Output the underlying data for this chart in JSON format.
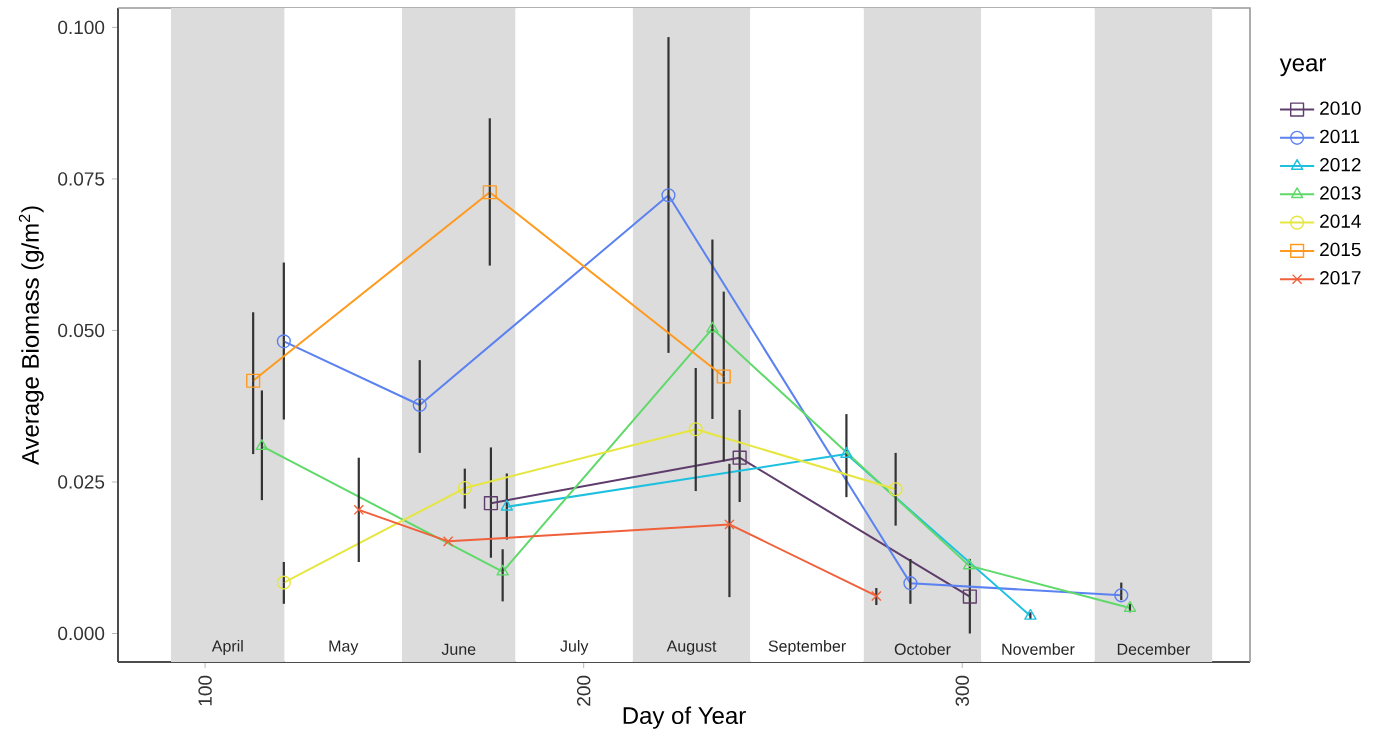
{
  "chart_data": {
    "type": "line",
    "xlabel": "Day of Year",
    "ylabel": "Average Biomass (g/m$^{2}$)",
    "legend_title": "year",
    "legend": "right",
    "grid": false,
    "xlim": [
      77,
      376
    ],
    "ylim": [
      -0.0047,
      0.1032
    ],
    "xticks": [
      100,
      200,
      300
    ],
    "yticks": [
      {
        "value": 0,
        "label": "0.000"
      },
      {
        "value": 0.025,
        "label": "0.025"
      },
      {
        "value": 0.05,
        "label": "0.050"
      },
      {
        "value": 0.075,
        "label": "0.075"
      },
      {
        "value": 0.1,
        "label": "0.100"
      }
    ],
    "bands": [
      {
        "axis": "x",
        "from": 91,
        "to": 121,
        "label": "April",
        "color": "#dcdcdc"
      },
      {
        "axis": "x",
        "from": 121,
        "to": 152,
        "label": "May",
        "color": "#ffffff"
      },
      {
        "axis": "x",
        "from": 152,
        "to": 182,
        "label": "June",
        "color": "#dcdcdc"
      },
      {
        "axis": "x",
        "from": 182,
        "to": 213,
        "label": "July",
        "color": "#ffffff"
      },
      {
        "axis": "x",
        "from": 213,
        "to": 244,
        "label": "August",
        "color": "#dcdcdc"
      },
      {
        "axis": "x",
        "from": 244,
        "to": 274,
        "label": "September",
        "color": "#ffffff"
      },
      {
        "axis": "x",
        "from": 274,
        "to": 305,
        "label": "October",
        "color": "#dcdcdc"
      },
      {
        "axis": "x",
        "from": 305,
        "to": 335,
        "label": "November",
        "color": "#ffffff"
      },
      {
        "axis": "x",
        "from": 335,
        "to": 366,
        "label": "December",
        "color": "#dcdcdc"
      }
    ],
    "series": [
      {
        "name": "2010",
        "color": "#5e3c6b",
        "marker": "square",
        "x": [
          175.5,
          241.2,
          302
        ],
        "values": [
          0.0215,
          0.029,
          0.0061
        ],
        "errors": [
          [
            0.0125,
            0.0307
          ],
          [
            0.0217,
            0.0369
          ],
          [
            0.0,
            0.0123
          ]
        ]
      },
      {
        "name": "2011",
        "color": "#5b82f0",
        "marker": "circle",
        "x": [
          120.8,
          156.7,
          222.4,
          286.3,
          342
        ],
        "values": [
          0.0482,
          0.0377,
          0.0723,
          0.0083,
          0.0063
        ],
        "errors": [
          [
            0.0353,
            0.0612
          ],
          [
            0.0298,
            0.0451
          ],
          [
            0.0463,
            0.0984
          ],
          [
            0.0049,
            0.0123
          ],
          [
            0.0055,
            0.0084
          ]
        ]
      },
      {
        "name": "2012",
        "color": "#1ec0e0",
        "marker": "triangle",
        "x": [
          179.7,
          269.4,
          318
        ],
        "values": [
          0.0209,
          0.0296,
          0.0029
        ],
        "errors": [
          [
            0.0155,
            0.0264
          ],
          [
            0.0225,
            0.0362
          ],
          [
            0.0024,
            0.0035
          ]
        ]
      },
      {
        "name": "2013",
        "color": "#5fd96a",
        "marker": "triangle",
        "x": [
          115,
          178.6,
          234,
          301.8,
          344.3
        ],
        "values": [
          0.0309,
          0.0102,
          0.0503,
          0.0112,
          0.0042
        ],
        "errors": [
          [
            0.022,
            0.0401
          ],
          [
            0.0053,
            0.0139
          ],
          [
            0.0354,
            0.065
          ],
          null,
          [
            0.0035,
            0.005
          ]
        ]
      },
      {
        "name": "2014",
        "color": "#e6e640",
        "marker": "circle",
        "x": [
          120.8,
          168.6,
          229.6,
          282.4
        ],
        "values": [
          0.0084,
          0.024,
          0.0337,
          0.0238
        ],
        "errors": [
          [
            0.0049,
            0.0118
          ],
          [
            0.0206,
            0.0272
          ],
          [
            0.0235,
            0.0438
          ],
          [
            0.0178,
            0.0298
          ]
        ]
      },
      {
        "name": "2015",
        "color": "#ff9a1f",
        "marker": "square",
        "x": [
          112.7,
          175.2,
          237
        ],
        "values": [
          0.0417,
          0.0728,
          0.0424
        ],
        "errors": [
          [
            0.0296,
            0.053
          ],
          [
            0.0607,
            0.085
          ],
          [
            0.0284,
            0.0564
          ]
        ]
      },
      {
        "name": "2017",
        "color": "#f0603a",
        "marker": "cross",
        "x": [
          140.6,
          164.2,
          238.5,
          277.3
        ],
        "values": [
          0.0204,
          0.0152,
          0.018,
          0.0062
        ],
        "errors": [
          [
            0.0118,
            0.029
          ],
          null,
          [
            0.006,
            0.028
          ],
          [
            0.0047,
            0.0075
          ]
        ]
      }
    ]
  }
}
